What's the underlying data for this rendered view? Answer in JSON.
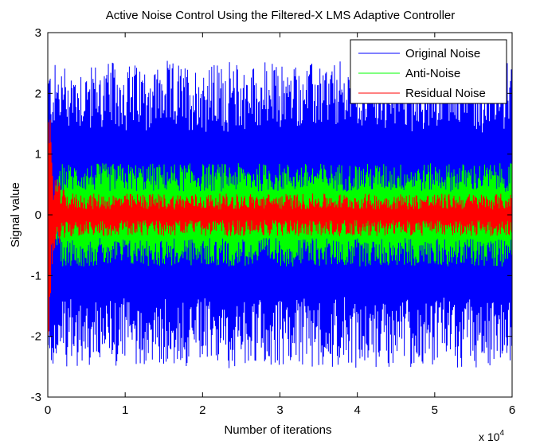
{
  "chart_data": {
    "type": "line",
    "title": "Active Noise Control Using the Filtered-X LMS Adaptive Controller",
    "xlabel": "Number of iterations",
    "ylabel": "Signal value",
    "x_multiplier_label": "x 10",
    "x_multiplier_exponent": "4",
    "xlim": [
      0,
      6
    ],
    "ylim": [
      -3,
      3
    ],
    "xticks": [
      "0",
      "1",
      "2",
      "3",
      "4",
      "5",
      "6"
    ],
    "yticks": [
      "3",
      "2",
      "1",
      "0",
      "-1",
      "-2",
      "-3"
    ],
    "grid": false,
    "legend_position": "top-right",
    "series": [
      {
        "name": "Original Noise",
        "color": "#0000ff",
        "envelope_start": 2.45,
        "envelope_end": 2.45,
        "peak_max": 2.6,
        "peak_min": -2.75
      },
      {
        "name": "Anti-Noise",
        "color": "#00ff00",
        "envelope_start": 0.0,
        "envelope_end": 0.85,
        "peak_max": 0.9,
        "peak_min": -0.9
      },
      {
        "name": "Residual Noise",
        "color": "#ff0000",
        "envelope_start": 2.45,
        "envelope_end": 0.35,
        "peak_max": 2.0,
        "peak_min": -2.4
      }
    ]
  }
}
